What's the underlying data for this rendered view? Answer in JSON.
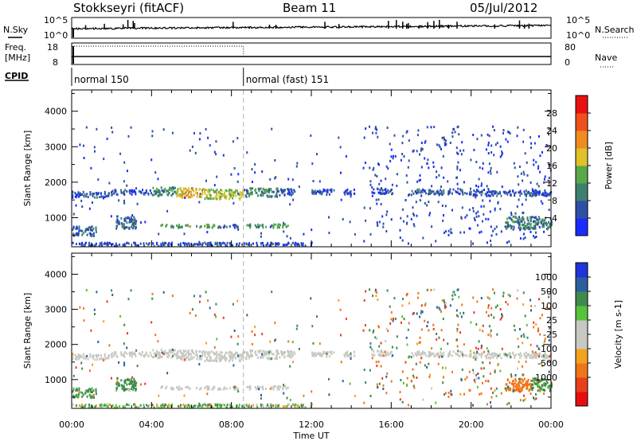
{
  "header": {
    "station": "Stokkseyri (fitACF)",
    "beam": "Beam 11",
    "date": "05/Jul/2012"
  },
  "sky_strip": {
    "left_label": "N.Sky",
    "right_label": "N.Search",
    "left_ticks": [
      "10^5",
      "10^0"
    ],
    "right_ticks": [
      "10^5",
      "10^0"
    ]
  },
  "freq_strip": {
    "left_label_line1": "Freq.",
    "left_label_line2": "[MHz]",
    "right_label": "Nave",
    "left_ticks": [
      "18",
      "8"
    ],
    "right_ticks": [
      "80",
      "0"
    ]
  },
  "cpid_strip": {
    "label": "CPID",
    "programs": [
      {
        "name": "normal 150",
        "start_hour": 0
      },
      {
        "name": "normal (fast) 151",
        "start_hour": 8.6
      }
    ]
  },
  "x_axis": {
    "label": "Time UT",
    "tick_labels": [
      "00:00",
      "04:00",
      "08:00",
      "12:00",
      "16:00",
      "20:00",
      "00:00"
    ]
  },
  "power_panel": {
    "ylabel": "Slant Range [km]",
    "y_tick_labels": [
      "1000",
      "2000",
      "3000",
      "4000"
    ],
    "colorbar_label": "Power [dB]",
    "colorbar_ticks": [
      "4",
      "8",
      "12",
      "16",
      "20",
      "24",
      "28"
    ]
  },
  "velocity_panel": {
    "ylabel": "Slant Range [km]",
    "y_tick_labels": [
      "1000",
      "2000",
      "3000",
      "4000"
    ],
    "colorbar_label": "Velocity [m s-1]",
    "colorbar_ticks": [
      "1000",
      "500",
      "100",
      "25",
      "-25",
      "-100",
      "-500",
      "-1000"
    ]
  },
  "colors": {
    "power_scale": [
      "#1a2bff",
      "#2e4fa8",
      "#3f7f6e",
      "#59a84a",
      "#e0c12a",
      "#f08c1e",
      "#f0501a",
      "#e81010"
    ],
    "velocity_scale": [
      "#2035d8",
      "#2d5fa0",
      "#3f8a4e",
      "#57c23a",
      "#c8c8c2",
      "#c8c8c2",
      "#f3a21f",
      "#f0751a",
      "#e8401a",
      "#e60e0e"
    ],
    "dashed_line": "#b0b0b0"
  },
  "chart_data": [
    {
      "type": "heatmap",
      "title": "Power",
      "xlabel": "Time UT",
      "ylabel": "Slant Range [km]",
      "xlim": [
        0,
        24
      ],
      "ylim": [
        180,
        4600
      ],
      "zlabel": "Power [dB]",
      "zlim": [
        0,
        32
      ],
      "dashed_vertical_hour": 8.6,
      "echo_bands": [
        {
          "t_start": 0.0,
          "t_end": 2.0,
          "r_center": 1680,
          "r_width": 130,
          "value": 6
        },
        {
          "t_start": 2.0,
          "t_end": 4.0,
          "r_center": 1750,
          "r_width": 110,
          "value": 5
        },
        {
          "t_start": 4.0,
          "t_end": 5.2,
          "r_center": 1760,
          "r_width": 200,
          "value": 12
        },
        {
          "t_start": 5.2,
          "t_end": 6.6,
          "r_center": 1730,
          "r_width": 230,
          "value": 18
        },
        {
          "t_start": 6.6,
          "t_end": 8.6,
          "r_center": 1690,
          "r_width": 230,
          "value": 16
        },
        {
          "t_start": 8.6,
          "t_end": 10.3,
          "r_center": 1740,
          "r_width": 200,
          "value": 11
        },
        {
          "t_start": 10.3,
          "t_end": 11.2,
          "r_center": 1760,
          "r_width": 160,
          "value": 6
        },
        {
          "t_start": 12.0,
          "t_end": 13.1,
          "r_center": 1760,
          "r_width": 130,
          "value": 5
        },
        {
          "t_start": 13.6,
          "t_end": 14.2,
          "r_center": 1760,
          "r_width": 120,
          "value": 5
        },
        {
          "t_start": 15.0,
          "t_end": 16.0,
          "r_center": 1780,
          "r_width": 140,
          "value": 5
        },
        {
          "t_start": 17.0,
          "t_end": 20.0,
          "r_center": 1760,
          "r_width": 120,
          "value": 7
        },
        {
          "t_start": 20.0,
          "t_end": 24.0,
          "r_center": 1720,
          "r_width": 130,
          "value": 6
        },
        {
          "t_start": 0.0,
          "t_end": 1.2,
          "r_center": 650,
          "r_width": 220,
          "value": 7
        },
        {
          "t_start": 2.2,
          "t_end": 3.2,
          "r_center": 900,
          "r_width": 300,
          "value": 7
        },
        {
          "t_start": 4.4,
          "t_end": 7.2,
          "r_center": 790,
          "r_width": 70,
          "value": 13
        },
        {
          "t_start": 7.2,
          "t_end": 8.3,
          "r_center": 790,
          "r_width": 70,
          "value": 7
        },
        {
          "t_start": 8.7,
          "t_end": 10.8,
          "r_center": 800,
          "r_width": 80,
          "value": 12
        },
        {
          "t_start": 21.7,
          "t_end": 24.0,
          "r_center": 880,
          "r_width": 300,
          "value": 10
        },
        {
          "t_start": 0.0,
          "t_end": 12.0,
          "r_center": 280,
          "r_width": 80,
          "value": 5
        }
      ]
    },
    {
      "type": "heatmap",
      "title": "Velocity",
      "xlabel": "Time UT",
      "ylabel": "Slant Range [km]",
      "xlim": [
        0,
        24
      ],
      "ylim": [
        180,
        4600
      ],
      "zlabel": "Velocity [m s-1]",
      "zlim": [
        -1000,
        1000
      ],
      "dashed_vertical_hour": 8.6,
      "echo_bands": [
        {
          "t_start": 0.0,
          "t_end": 2.0,
          "r_center": 1680,
          "r_width": 130,
          "value": 0
        },
        {
          "t_start": 2.0,
          "t_end": 4.0,
          "r_center": 1750,
          "r_width": 110,
          "value": 0
        },
        {
          "t_start": 4.0,
          "t_end": 5.2,
          "r_center": 1760,
          "r_width": 200,
          "value": 0
        },
        {
          "t_start": 5.2,
          "t_end": 6.6,
          "r_center": 1730,
          "r_width": 230,
          "value": 0
        },
        {
          "t_start": 6.6,
          "t_end": 8.6,
          "r_center": 1690,
          "r_width": 230,
          "value": 0
        },
        {
          "t_start": 8.6,
          "t_end": 10.3,
          "r_center": 1740,
          "r_width": 200,
          "value": 0
        },
        {
          "t_start": 10.3,
          "t_end": 11.2,
          "r_center": 1760,
          "r_width": 160,
          "value": 0
        },
        {
          "t_start": 12.0,
          "t_end": 13.1,
          "r_center": 1760,
          "r_width": 130,
          "value": 0
        },
        {
          "t_start": 13.6,
          "t_end": 14.2,
          "r_center": 1760,
          "r_width": 120,
          "value": 0
        },
        {
          "t_start": 15.0,
          "t_end": 16.0,
          "r_center": 1780,
          "r_width": 140,
          "value": 0
        },
        {
          "t_start": 17.0,
          "t_end": 20.0,
          "r_center": 1760,
          "r_width": 120,
          "value": 0
        },
        {
          "t_start": 20.0,
          "t_end": 24.0,
          "r_center": 1720,
          "r_width": 130,
          "value": 0
        },
        {
          "t_start": 0.0,
          "t_end": 1.2,
          "r_center": 650,
          "r_width": 220,
          "value": 150
        },
        {
          "t_start": 2.2,
          "t_end": 3.2,
          "r_center": 900,
          "r_width": 300,
          "value": 180
        },
        {
          "t_start": 4.4,
          "t_end": 7.2,
          "r_center": 790,
          "r_width": 70,
          "value": 0
        },
        {
          "t_start": 7.2,
          "t_end": 8.3,
          "r_center": 790,
          "r_width": 70,
          "value": 0
        },
        {
          "t_start": 8.7,
          "t_end": 10.8,
          "r_center": 800,
          "r_width": 80,
          "value": 0
        },
        {
          "t_start": 21.7,
          "t_end": 23.0,
          "r_center": 880,
          "r_width": 300,
          "value": -300
        },
        {
          "t_start": 23.0,
          "t_end": 24.0,
          "r_center": 880,
          "r_width": 300,
          "value": 150
        },
        {
          "t_start": 0.0,
          "t_end": 12.0,
          "r_center": 280,
          "r_width": 80,
          "value": 60
        }
      ]
    }
  ]
}
